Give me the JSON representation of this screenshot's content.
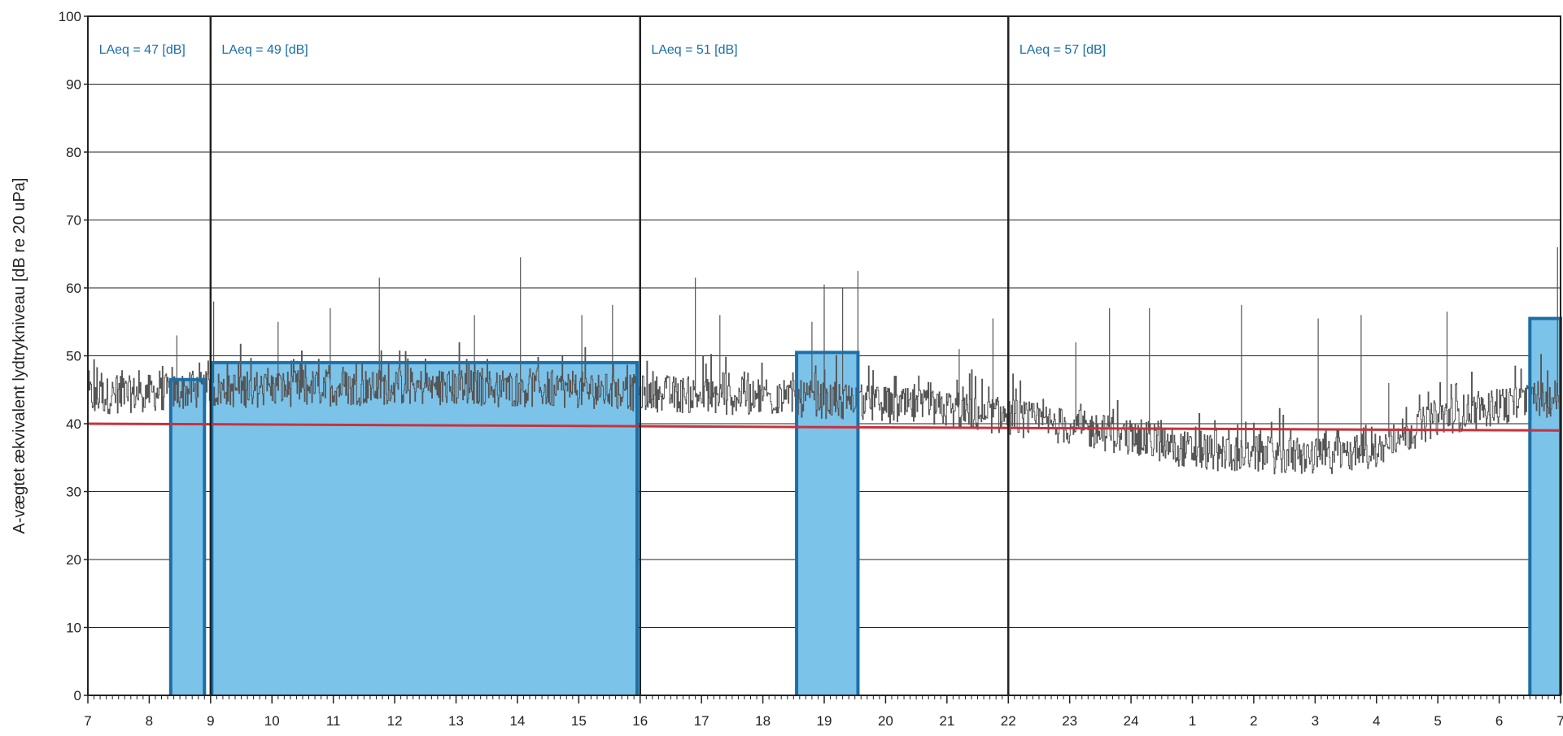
{
  "chart_data": {
    "type": "area",
    "ylabel": "A-vægtet ækvivalent lydtrykniveau [dB re 20 uPa]",
    "xlabel": "",
    "ylim": [
      0,
      100
    ],
    "yticks": [
      "0",
      "10",
      "20",
      "30",
      "40",
      "50",
      "60",
      "70",
      "80",
      "90",
      "100"
    ],
    "xrange_hours": [
      7,
      31
    ],
    "xtick_labels": [
      "7",
      "8",
      "9",
      "10",
      "11",
      "12",
      "13",
      "14",
      "15",
      "16",
      "17",
      "18",
      "19",
      "20",
      "21",
      "22",
      "23",
      "24",
      "1",
      "2",
      "3",
      "4",
      "5",
      "6",
      "7"
    ],
    "grid": true,
    "period_dividers_hour": [
      9,
      16,
      22
    ],
    "laeq_labels": [
      {
        "text": "LAeq = 47 [dB]",
        "hour": 7.18
      },
      {
        "text": "LAeq = 49 [dB]",
        "hour": 9.18
      },
      {
        "text": "LAeq = 51 [dB]",
        "hour": 16.18
      },
      {
        "text": "LAeq = 57 [dB]",
        "hour": 22.18
      }
    ],
    "highlight_blocks": [
      {
        "start": 8.35,
        "end": 8.9,
        "level": 46.5
      },
      {
        "start": 9.02,
        "end": 15.95,
        "level": 49
      },
      {
        "start": 18.55,
        "end": 19.55,
        "level": 50.5
      },
      {
        "start": 30.5,
        "end": 31.0,
        "level": 55.5
      }
    ],
    "reference_line": {
      "start_level": 40,
      "end_level": 39,
      "color": "#c8323c"
    },
    "trace_profile": [
      {
        "hour": 7,
        "level": 44
      },
      {
        "hour": 8,
        "level": 44.5
      },
      {
        "hour": 9,
        "level": 45
      },
      {
        "hour": 12,
        "level": 45.5
      },
      {
        "hour": 15,
        "level": 45
      },
      {
        "hour": 16,
        "level": 44.5
      },
      {
        "hour": 19,
        "level": 43.5
      },
      {
        "hour": 21,
        "level": 42
      },
      {
        "hour": 22,
        "level": 41
      },
      {
        "hour": 24,
        "level": 38
      },
      {
        "hour": 25,
        "level": 36
      },
      {
        "hour": 27,
        "level": 35
      },
      {
        "hour": 28,
        "level": 36
      },
      {
        "hour": 29,
        "level": 41
      },
      {
        "hour": 30,
        "level": 42.5
      },
      {
        "hour": 31,
        "level": 44
      }
    ],
    "spikes": [
      {
        "hour": 8.45,
        "level": 53
      },
      {
        "hour": 9.05,
        "level": 58
      },
      {
        "hour": 10.1,
        "level": 55
      },
      {
        "hour": 10.95,
        "level": 57
      },
      {
        "hour": 11.75,
        "level": 61.5
      },
      {
        "hour": 13.3,
        "level": 56
      },
      {
        "hour": 14.05,
        "level": 64.5
      },
      {
        "hour": 15.05,
        "level": 56
      },
      {
        "hour": 15.55,
        "level": 57.5
      },
      {
        "hour": 16.0,
        "level": 59
      },
      {
        "hour": 16.9,
        "level": 61.5
      },
      {
        "hour": 17.3,
        "level": 56
      },
      {
        "hour": 18.8,
        "level": 55
      },
      {
        "hour": 19.0,
        "level": 60.5
      },
      {
        "hour": 19.3,
        "level": 60
      },
      {
        "hour": 19.55,
        "level": 62.5
      },
      {
        "hour": 21.2,
        "level": 51
      },
      {
        "hour": 21.75,
        "level": 55.5
      },
      {
        "hour": 23.1,
        "level": 52
      },
      {
        "hour": 23.65,
        "level": 57
      },
      {
        "hour": 24.3,
        "level": 57
      },
      {
        "hour": 25.8,
        "level": 57.5
      },
      {
        "hour": 27.05,
        "level": 55.5
      },
      {
        "hour": 27.75,
        "level": 56
      },
      {
        "hour": 28.2,
        "level": 46
      },
      {
        "hour": 29.15,
        "level": 56.5
      },
      {
        "hour": 30.5,
        "level": 53
      },
      {
        "hour": 30.95,
        "level": 66
      }
    ],
    "colors": {
      "fill": "#7cc3ea",
      "block_outline": "#1c6fa6",
      "trace": "#555555",
      "reference": "#c8323c",
      "grid": "#222222",
      "label": "#1a6ea8"
    }
  }
}
